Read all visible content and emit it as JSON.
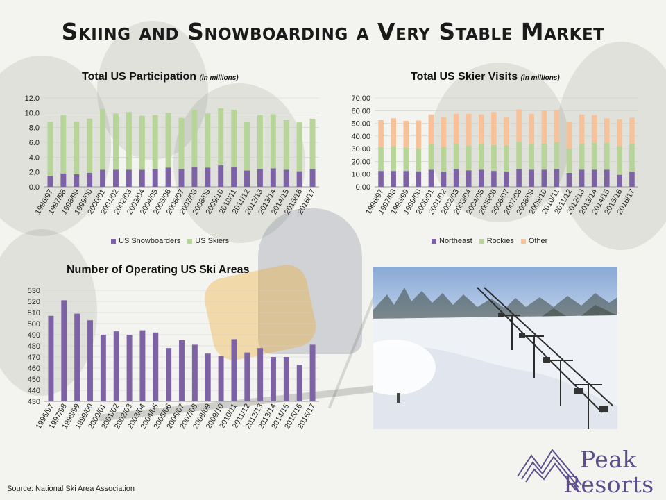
{
  "page": {
    "title": "Skiing and Snowboarding a Very Stable Market",
    "source": "Source: National Ski Area Association"
  },
  "logo": {
    "line1": "Peak",
    "line2": "Resorts",
    "color": "#5e4f8c"
  },
  "photo": {
    "icon": "snowy-ski-slope-with-chairlift-photo"
  },
  "colors": {
    "snowboarders": "#7d62a6",
    "skiers": "#b7d598",
    "northeast": "#7d62a6",
    "rockies": "#b7d598",
    "other": "#f7c29a",
    "ski_areas": "#7d62a6"
  },
  "participation": {
    "title": "Total US Participation",
    "unit": "(in millions)"
  },
  "visits": {
    "title": "Total US Skier Visits",
    "unit": "(in millions)"
  },
  "areas": {
    "title": "Number of Operating US Ski Areas"
  },
  "chart_data": [
    {
      "id": "participation",
      "type": "bar",
      "stacked": true,
      "title": "Total US Participation (in millions)",
      "categories": [
        "1996/97",
        "1997/98",
        "1998/99",
        "1999/00",
        "2000/01",
        "2001/02",
        "2002/03",
        "2003/04",
        "2004/05",
        "2005/06",
        "2006/07",
        "2007/08",
        "2008/09",
        "2009/10",
        "2010/11",
        "2011/12",
        "2012/13",
        "2013/14",
        "2014/15",
        "2015/16",
        "2016/17"
      ],
      "series": [
        {
          "name": "US Snowboarders",
          "values": [
            1.5,
            1.8,
            1.7,
            1.9,
            2.3,
            2.3,
            2.3,
            2.3,
            2.4,
            2.6,
            2.4,
            2.7,
            2.6,
            2.9,
            2.7,
            2.2,
            2.4,
            2.5,
            2.3,
            2.1,
            2.4
          ]
        },
        {
          "name": "US Skiers",
          "values": [
            7.3,
            7.9,
            7.1,
            7.3,
            8.2,
            7.6,
            7.8,
            7.3,
            7.3,
            7.4,
            6.9,
            7.7,
            7.3,
            7.7,
            7.7,
            6.6,
            7.3,
            7.3,
            6.7,
            6.6,
            6.8
          ]
        }
      ],
      "ylim": [
        0,
        12
      ],
      "yticks": [
        "0.0",
        "2.0",
        "4.0",
        "6.0",
        "8.0",
        "10.0",
        "12.0"
      ],
      "legend": "bottom"
    },
    {
      "id": "visits",
      "type": "bar",
      "stacked": true,
      "title": "Total US Skier Visits (in millions)",
      "categories": [
        "1996/97",
        "1997/98",
        "1998/99",
        "1999/00",
        "2000/01",
        "2001/02",
        "2002/03",
        "2003/04",
        "2004/05",
        "2005/06",
        "2006/07",
        "2007/08",
        "2008/09",
        "2009/10",
        "2010/11",
        "2011/12",
        "2012/13",
        "2013/14",
        "2014/15",
        "2015/16",
        "2016/17"
      ],
      "series": [
        {
          "name": "Northeast",
          "values": [
            12.5,
            12.5,
            12.5,
            12.2,
            13.5,
            12.0,
            14.0,
            13.0,
            13.5,
            12.5,
            12.0,
            14.0,
            13.5,
            13.5,
            14.0,
            11.0,
            13.5,
            13.5,
            13.5,
            9.5,
            12.0
          ]
        },
        {
          "name": "Rockies",
          "values": [
            19.0,
            19.5,
            18.5,
            18.0,
            20.0,
            19.5,
            20.0,
            19.5,
            20.5,
            20.5,
            20.5,
            21.5,
            20.5,
            20.5,
            21.0,
            19.0,
            20.5,
            21.0,
            21.0,
            22.5,
            22.0
          ]
        },
        {
          "name": "Other",
          "values": [
            21.0,
            22.0,
            21.0,
            22.0,
            23.5,
            23.5,
            23.5,
            25.0,
            23.0,
            26.0,
            22.5,
            25.5,
            23.5,
            26.0,
            25.5,
            21.0,
            23.0,
            22.0,
            19.5,
            21.0,
            20.5
          ]
        }
      ],
      "ylim": [
        0,
        70
      ],
      "yticks": [
        "0.00",
        "10.00",
        "20.00",
        "30.00",
        "40.00",
        "50.00",
        "60.00",
        "70.00"
      ],
      "legend": "bottom"
    },
    {
      "id": "areas",
      "type": "bar",
      "title": "Number of Operating US Ski Areas",
      "categories": [
        "1996/97",
        "1997/98",
        "1998/99",
        "1999/00",
        "2000/01",
        "2001/02",
        "2002/03",
        "2003/04",
        "2004/05",
        "2005/06",
        "2006/07",
        "2007/08",
        "2008/09",
        "2009/10",
        "2010/11",
        "2011/12",
        "2012/13",
        "2013/14",
        "2014/15",
        "2015/16",
        "2016/17"
      ],
      "values": [
        507,
        521,
        509,
        503,
        490,
        493,
        490,
        494,
        492,
        478,
        485,
        481,
        473,
        471,
        486,
        474,
        478,
        470,
        470,
        463,
        481
      ],
      "ylim": [
        430,
        530
      ],
      "yticks": [
        "430",
        "440",
        "450",
        "460",
        "470",
        "480",
        "490",
        "500",
        "510",
        "520",
        "530"
      ]
    }
  ]
}
